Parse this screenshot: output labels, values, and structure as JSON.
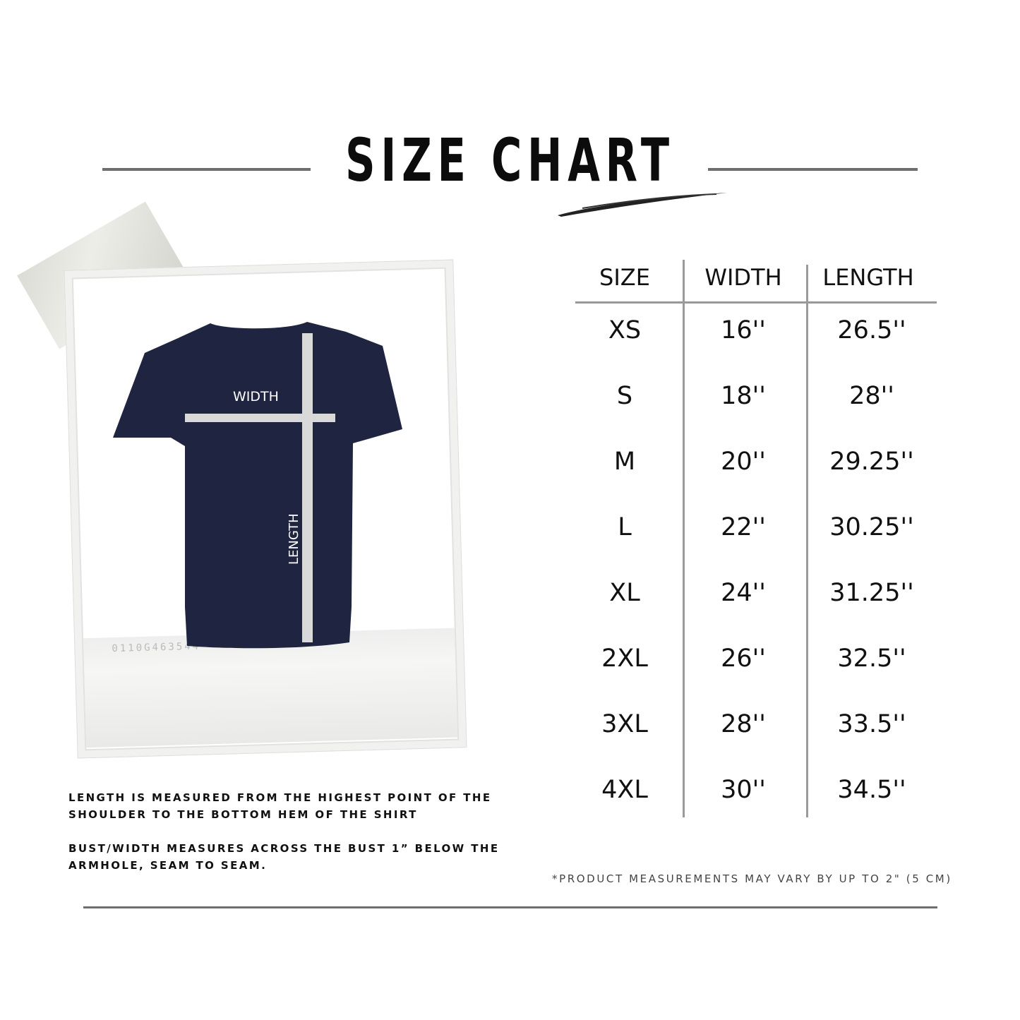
{
  "title": "SIZE CHART",
  "diagram": {
    "width_label": "WIDTH",
    "length_label": "LENGTH",
    "serial": "0110G463544",
    "shirt_color": "#1f2440"
  },
  "table": {
    "headers": [
      "SIZE",
      "WIDTH",
      "LENGTH"
    ],
    "rows": [
      [
        "XS",
        "16''",
        "26.5''"
      ],
      [
        "S",
        "18''",
        "28''"
      ],
      [
        "M",
        "20''",
        "29.25''"
      ],
      [
        "L",
        "22''",
        "30.25''"
      ],
      [
        "XL",
        "24''",
        "31.25''"
      ],
      [
        "2XL",
        "26''",
        "32.5''"
      ],
      [
        "3XL",
        "28''",
        "33.5''"
      ],
      [
        "4XL",
        "30''",
        "34.5''"
      ]
    ]
  },
  "notes": [
    "LENGTH IS MEASURED FROM THE HIGHEST POINT OF THE SHOULDER TO THE BOTTOM HEM OF THE SHIRT",
    "BUST/WIDTH MEASURES ACROSS THE BUST 1” BELOW THE ARMHOLE, SEAM TO SEAM."
  ],
  "disclaimer": "*PRODUCT MEASUREMENTS MAY VARY BY UP TO 2\" (5 CM)"
}
